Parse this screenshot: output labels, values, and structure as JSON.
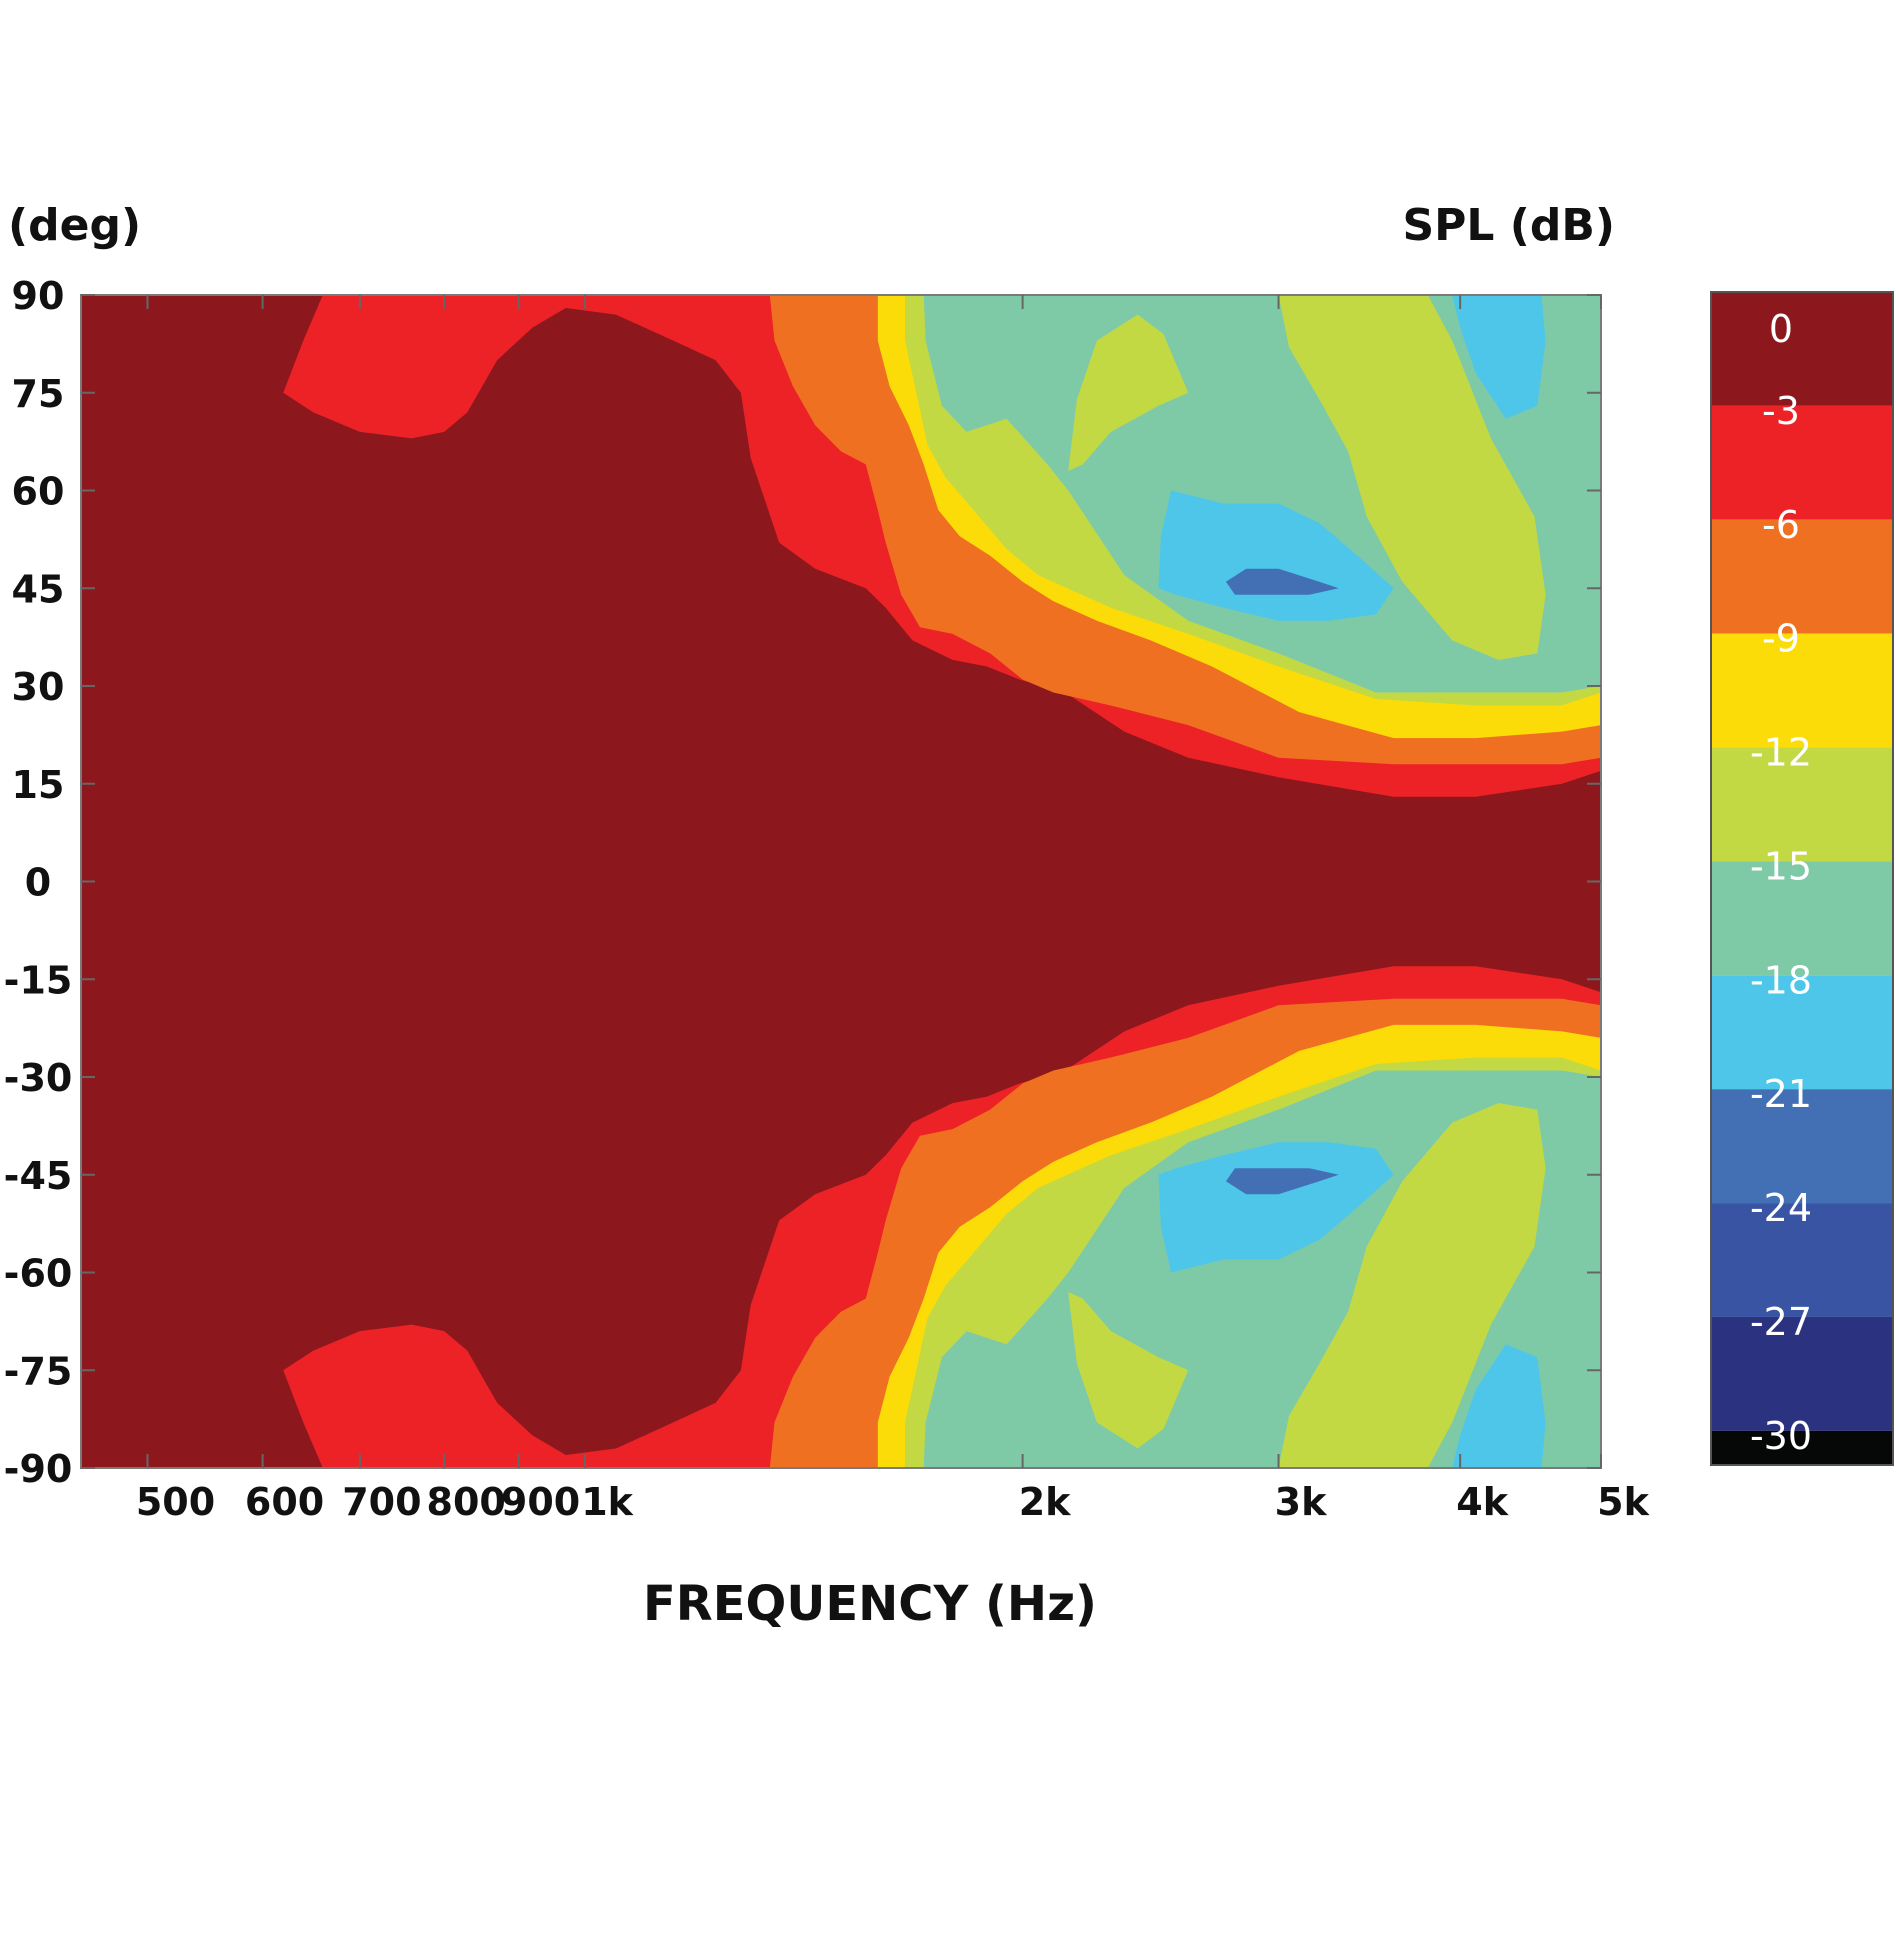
{
  "chart_data": {
    "type": "heatmap",
    "subtype": "filled-contour",
    "title": "",
    "xlabel": "FREQUENCY (Hz)",
    "ylabel": "(deg)",
    "colorbar_label": "SPL (dB)",
    "x_scale": "log",
    "xlim": [
      450,
      5000
    ],
    "ylim": [
      -90,
      90
    ],
    "x_ticks": [
      500,
      600,
      700,
      800,
      900,
      1000,
      2000,
      3000,
      4000,
      5000
    ],
    "x_tick_labels": [
      "500",
      "600",
      "700",
      "800",
      "900",
      "1k",
      "2k",
      "3k",
      "4k",
      "5k"
    ],
    "y_ticks": [
      90,
      75,
      60,
      45,
      30,
      15,
      0,
      -15,
      -30,
      -45,
      -60,
      -75,
      -90
    ],
    "y_tick_labels": [
      "90",
      "75",
      "60",
      "45",
      "30",
      "15",
      "0",
      "-15",
      "-30",
      "-45",
      "-60",
      "-75",
      "-90"
    ],
    "colorbar": {
      "labels": [
        "0",
        "-3",
        "-6",
        "-9",
        "-12",
        "-15",
        "-18",
        "-21",
        "-24",
        "-27",
        "-30"
      ],
      "colors": [
        "#8c181e",
        "#ed2227",
        "#f07022",
        "#fcdc08",
        "#c3d944",
        "#7fcaa6",
        "#4dc6e9",
        "#4370b5",
        "#3a54a4",
        "#2b3280",
        "#060707"
      ]
    },
    "contour_boundaries_upper": [
      {
        "level": -3,
        "color": "#ed2227",
        "points": [
          [
            450,
            90
          ],
          [
            660,
            90
          ],
          [
            640,
            83
          ],
          [
            620,
            75
          ],
          [
            650,
            72
          ],
          [
            700,
            69
          ],
          [
            760,
            68
          ],
          [
            800,
            69
          ],
          [
            830,
            72
          ],
          [
            870,
            80
          ],
          [
            920,
            85
          ],
          [
            970,
            88
          ],
          [
            1050,
            87
          ],
          [
            1150,
            83
          ],
          [
            1230,
            80
          ],
          [
            1280,
            75
          ],
          [
            1300,
            65
          ],
          [
            1360,
            52
          ],
          [
            1440,
            48
          ],
          [
            1560,
            45
          ],
          [
            1610,
            42
          ],
          [
            1680,
            37
          ],
          [
            1790,
            34
          ],
          [
            1890,
            33
          ],
          [
            1990,
            31
          ],
          [
            2140,
            29
          ],
          [
            2350,
            23
          ],
          [
            2600,
            19
          ],
          [
            3000,
            16
          ],
          [
            3600,
            13
          ],
          [
            4100,
            13
          ],
          [
            4700,
            15
          ],
          [
            5000,
            17
          ]
        ]
      },
      {
        "level": -6,
        "color": "#f07022",
        "points": [
          [
            450,
            90
          ],
          [
            1340,
            90
          ],
          [
            1350,
            83
          ],
          [
            1390,
            76
          ],
          [
            1440,
            70
          ],
          [
            1500,
            66
          ],
          [
            1560,
            64
          ],
          [
            1590,
            57
          ],
          [
            1610,
            52
          ],
          [
            1650,
            44
          ],
          [
            1700,
            39
          ],
          [
            1790,
            38
          ],
          [
            1900,
            35
          ],
          [
            2000,
            31
          ],
          [
            2100,
            29
          ],
          [
            2300,
            27
          ],
          [
            2600,
            24
          ],
          [
            3000,
            19
          ],
          [
            3600,
            18
          ],
          [
            4100,
            18
          ],
          [
            4700,
            18
          ],
          [
            5000,
            19
          ]
        ]
      },
      {
        "level": -9,
        "color": "#fcdc08",
        "points": [
          [
            450,
            90
          ],
          [
            1590,
            90
          ],
          [
            1590,
            83
          ],
          [
            1620,
            76
          ],
          [
            1670,
            70
          ],
          [
            1710,
            64
          ],
          [
            1750,
            57
          ],
          [
            1810,
            53
          ],
          [
            1900,
            50
          ],
          [
            2000,
            46
          ],
          [
            2100,
            43
          ],
          [
            2250,
            40
          ],
          [
            2450,
            37
          ],
          [
            2700,
            33
          ],
          [
            3100,
            26
          ],
          [
            3600,
            22
          ],
          [
            4100,
            22
          ],
          [
            4700,
            23
          ],
          [
            5000,
            24
          ]
        ]
      },
      {
        "level": -12,
        "color": "#c3d944",
        "points": [
          [
            450,
            90
          ],
          [
            1660,
            90
          ],
          [
            1660,
            83
          ],
          [
            1690,
            75
          ],
          [
            1720,
            67
          ],
          [
            1770,
            62
          ],
          [
            1850,
            57
          ],
          [
            1950,
            51
          ],
          [
            2050,
            47
          ],
          [
            2300,
            42
          ],
          [
            2600,
            38
          ],
          [
            3000,
            33
          ],
          [
            3500,
            28
          ],
          [
            4100,
            27
          ],
          [
            4700,
            27
          ],
          [
            5000,
            29
          ]
        ]
      },
      {
        "level": -15,
        "color": "#7fcaa6",
        "points": [
          [
            450,
            90
          ],
          [
            1710,
            90
          ],
          [
            1715,
            83
          ],
          [
            1760,
            73
          ],
          [
            1830,
            69
          ],
          [
            1950,
            71
          ],
          [
            2080,
            64
          ],
          [
            2150,
            60
          ],
          [
            2350,
            47
          ],
          [
            2600,
            40
          ],
          [
            3000,
            35
          ],
          [
            3500,
            29
          ],
          [
            4200,
            29
          ],
          [
            4700,
            29
          ],
          [
            5000,
            30
          ]
        ]
      },
      {
        "level": -12,
        "color": "#c3d944",
        "points": [
          [
            2150,
            63
          ],
          [
            2180,
            74
          ],
          [
            2250,
            83
          ],
          [
            2400,
            87
          ],
          [
            2500,
            84
          ],
          [
            2600,
            75
          ],
          [
            2480,
            73
          ],
          [
            2300,
            69
          ],
          [
            2200,
            64
          ]
        ]
      },
      {
        "level": -12,
        "color": "#c3d944",
        "points": [
          [
            3000,
            90
          ],
          [
            3800,
            90
          ],
          [
            3950,
            83
          ],
          [
            4200,
            68
          ],
          [
            4500,
            56
          ],
          [
            4580,
            44
          ],
          [
            4520,
            35
          ],
          [
            4250,
            34
          ],
          [
            3950,
            37
          ],
          [
            3650,
            46
          ],
          [
            3450,
            56
          ],
          [
            3350,
            66
          ],
          [
            3200,
            74
          ],
          [
            3050,
            82
          ]
        ]
      },
      {
        "level": -18,
        "color": "#4dc6e9",
        "points": [
          [
            3950,
            90
          ],
          [
            4550,
            90
          ],
          [
            4580,
            83
          ],
          [
            4520,
            73
          ],
          [
            4300,
            71
          ],
          [
            4100,
            78
          ],
          [
            4000,
            85
          ]
        ]
      },
      {
        "level": -18,
        "color": "#4dc6e9",
        "points": [
          [
            2480,
            45
          ],
          [
            2490,
            53
          ],
          [
            2530,
            60
          ],
          [
            2750,
            58
          ],
          [
            3000,
            58
          ],
          [
            3200,
            55
          ],
          [
            3400,
            50
          ],
          [
            3600,
            45
          ],
          [
            3500,
            41
          ],
          [
            3250,
            40
          ],
          [
            3000,
            40
          ],
          [
            2750,
            42
          ],
          [
            2550,
            44
          ]
        ]
      },
      {
        "level": -21,
        "color": "#4370b5",
        "points": [
          [
            2760,
            46
          ],
          [
            2850,
            48
          ],
          [
            3000,
            48
          ],
          [
            3200,
            46
          ],
          [
            3300,
            45
          ],
          [
            3150,
            44
          ],
          [
            2950,
            44
          ],
          [
            2800,
            44
          ]
        ]
      }
    ]
  }
}
